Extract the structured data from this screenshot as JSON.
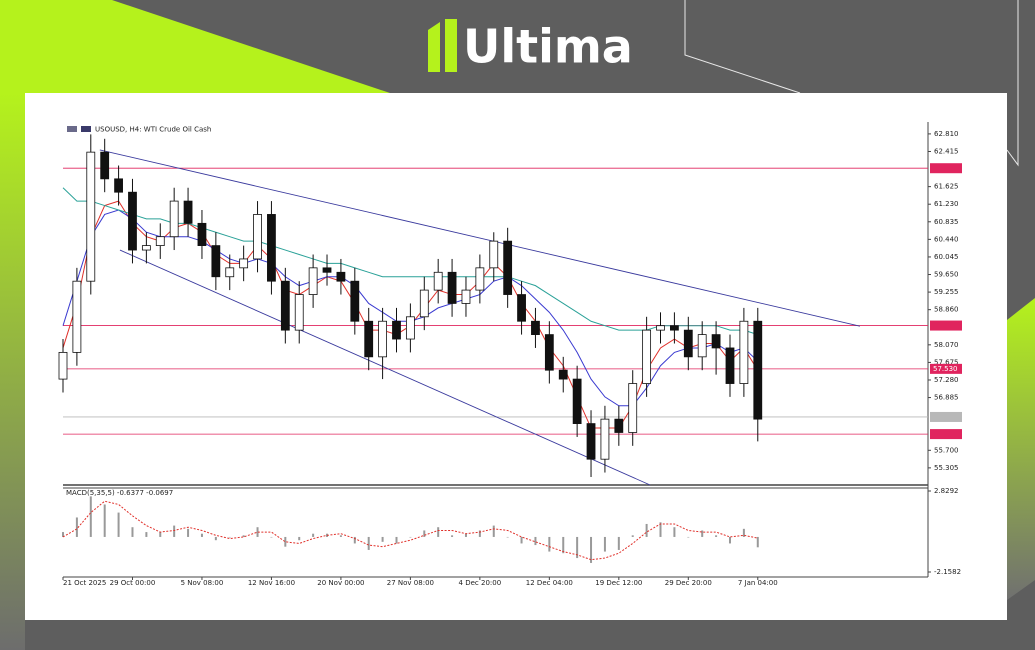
{
  "brand": "Ultima",
  "chart_data": {
    "type": "candlestick",
    "title": "USOUSD, H4:  WTI Crude Oil Cash",
    "xlim": [
      0,
      124.5
    ],
    "ylim": [
      54.92,
      63.01
    ],
    "xticks": [
      {
        "value": 0,
        "label": "21 Oct 2025"
      },
      {
        "value": 10,
        "label": "29 Oct 00:00"
      },
      {
        "value": 20,
        "label": "5 Nov 08:00"
      },
      {
        "value": 30,
        "label": "12 Nov 16:00"
      },
      {
        "value": 40,
        "label": "20 Nov 00:00"
      },
      {
        "value": 50,
        "label": "27 Nov 08:00"
      },
      {
        "value": 60,
        "label": "4 Dec 20:00"
      },
      {
        "value": 70,
        "label": "12 Dec 04:00"
      },
      {
        "value": 80,
        "label": "19 Dec 12:00"
      },
      {
        "value": 90,
        "label": "29 Dec 20:00"
      },
      {
        "value": 100,
        "label": "7 Jan 04:00"
      }
    ],
    "yticks": [
      {
        "value": 62.81,
        "label": "62.810"
      },
      62.415,
      61.625,
      {
        "value": 61.23,
        "label": "61.230"
      },
      60.835,
      {
        "value": 60.44,
        "label": "60.440"
      },
      60.045,
      {
        "value": 59.65,
        "label": "59.650"
      },
      59.255,
      {
        "value": 58.86,
        "label": "58.860"
      },
      {
        "value": 58.07,
        "label": "58.070"
      },
      57.675,
      {
        "value": 57.28,
        "label": "57.280"
      },
      56.885,
      {
        "value": 55.7,
        "label": "55.700"
      },
      55.305
    ],
    "x": [
      0,
      2,
      4,
      6,
      8,
      10,
      12,
      14,
      16,
      18,
      20,
      22,
      24,
      26,
      28,
      30,
      32,
      34,
      36,
      38,
      40,
      42,
      44,
      46,
      48,
      50,
      52,
      54,
      56,
      58,
      60,
      62,
      64,
      66,
      68,
      70,
      72,
      74,
      76,
      78,
      80,
      82,
      84,
      86,
      88,
      90,
      92,
      94,
      96,
      98,
      100
    ],
    "open": [
      57.3,
      57.9,
      59.5,
      62.4,
      61.8,
      61.5,
      60.2,
      60.3,
      60.5,
      61.3,
      60.8,
      60.3,
      59.6,
      59.8,
      60.0,
      61.0,
      59.5,
      58.4,
      59.2,
      59.8,
      59.7,
      59.5,
      58.6,
      57.8,
      58.6,
      58.2,
      58.7,
      59.3,
      59.7,
      59.0,
      59.3,
      59.8,
      60.4,
      59.2,
      58.6,
      58.3,
      57.5,
      57.3,
      56.3,
      55.5,
      56.4,
      56.1,
      57.2,
      58.4,
      58.5,
      58.4,
      57.8,
      58.3,
      58.0,
      57.2,
      58.6
    ],
    "high": [
      58.2,
      59.8,
      62.8,
      62.7,
      62.1,
      61.8,
      60.6,
      60.8,
      61.6,
      61.6,
      61.1,
      60.6,
      60.1,
      60.3,
      61.3,
      61.3,
      59.8,
      59.5,
      60.1,
      60.1,
      60.0,
      59.8,
      58.9,
      58.9,
      58.9,
      59.0,
      59.6,
      60.0,
      60.0,
      59.6,
      60.1,
      60.6,
      60.7,
      59.5,
      58.9,
      58.6,
      57.8,
      57.6,
      56.6,
      56.7,
      56.7,
      57.5,
      58.7,
      58.8,
      58.8,
      58.7,
      58.6,
      58.6,
      58.3,
      58.9,
      58.9
    ],
    "low": [
      57.0,
      57.6,
      59.2,
      61.5,
      61.2,
      59.9,
      59.9,
      60.0,
      60.2,
      60.5,
      60.0,
      59.3,
      59.3,
      59.5,
      59.7,
      59.2,
      58.1,
      58.1,
      58.9,
      59.4,
      59.2,
      58.3,
      57.5,
      57.3,
      57.9,
      57.9,
      58.4,
      59.0,
      58.7,
      58.7,
      59.0,
      59.5,
      58.9,
      58.3,
      58.0,
      57.2,
      57.0,
      56.0,
      55.1,
      55.2,
      55.8,
      55.8,
      56.9,
      58.1,
      58.1,
      57.5,
      57.5,
      57.4,
      56.9,
      56.9,
      55.9
    ],
    "close": [
      57.9,
      59.5,
      62.4,
      61.8,
      61.5,
      60.2,
      60.3,
      60.5,
      61.3,
      60.8,
      60.3,
      59.6,
      59.8,
      60.0,
      61.0,
      59.5,
      58.4,
      59.2,
      59.8,
      59.7,
      59.5,
      58.6,
      57.8,
      58.6,
      58.2,
      58.7,
      59.3,
      59.7,
      59.0,
      59.3,
      59.8,
      60.4,
      59.2,
      58.6,
      58.3,
      57.5,
      57.3,
      56.3,
      55.5,
      56.4,
      56.1,
      57.2,
      58.4,
      58.5,
      58.4,
      57.8,
      58.3,
      58.0,
      57.2,
      58.6,
      56.4
    ],
    "lines": [
      {
        "color": "#e0302a",
        "values": [
          58.0,
          59.0,
          60.5,
          61.2,
          61.3,
          60.8,
          60.5,
          60.4,
          60.7,
          60.8,
          60.6,
          60.1,
          59.9,
          59.9,
          60.3,
          60.0,
          59.3,
          59.2,
          59.4,
          59.6,
          59.5,
          59.0,
          58.4,
          58.4,
          58.3,
          58.5,
          58.9,
          59.3,
          59.2,
          59.2,
          59.5,
          59.9,
          59.6,
          59.0,
          58.6,
          58.0,
          57.6,
          56.9,
          56.2,
          56.2,
          56.2,
          56.7,
          57.5,
          58.0,
          58.2,
          58.0,
          58.1,
          58.1,
          57.7,
          58.0,
          57.5
        ]
      },
      {
        "color": "#3a3ad0",
        "values": [
          58.5,
          59.5,
          60.5,
          61.0,
          61.1,
          60.9,
          60.6,
          60.5,
          60.5,
          60.5,
          60.4,
          60.2,
          60.0,
          59.9,
          60.0,
          59.9,
          59.6,
          59.4,
          59.5,
          59.6,
          59.6,
          59.4,
          59.0,
          58.8,
          58.6,
          58.6,
          58.7,
          58.9,
          59.0,
          59.1,
          59.2,
          59.5,
          59.6,
          59.4,
          59.1,
          58.8,
          58.4,
          57.9,
          57.3,
          56.9,
          56.7,
          56.7,
          57.1,
          57.6,
          57.9,
          58.0,
          58.0,
          58.1,
          57.9,
          58.0,
          57.7
        ]
      },
      {
        "color": "#2aa198",
        "values": [
          61.6,
          61.3,
          61.3,
          61.2,
          61.1,
          61.0,
          60.9,
          60.9,
          60.8,
          60.8,
          60.7,
          60.6,
          60.5,
          60.4,
          60.4,
          60.3,
          60.2,
          60.1,
          60.0,
          59.9,
          59.9,
          59.8,
          59.7,
          59.6,
          59.6,
          59.6,
          59.6,
          59.6,
          59.6,
          59.6,
          59.6,
          59.6,
          59.6,
          59.5,
          59.4,
          59.2,
          59.0,
          58.8,
          58.6,
          58.5,
          58.4,
          58.4,
          58.4,
          58.5,
          58.5,
          58.5,
          58.5,
          58.5,
          58.4,
          58.4,
          58.3
        ]
      }
    ],
    "trendlines": [
      {
        "color": "#3b3b9e",
        "x": [
          5.3,
          114.7
        ],
        "y": [
          62.45,
          58.49
        ]
      },
      {
        "color": "#3b3b9e",
        "x": [
          8.2,
          84.5
        ],
        "y": [
          60.2,
          54.92
        ]
      }
    ],
    "levels": [
      {
        "value": 62.039,
        "color": "#e0245e"
      },
      {
        "value": 58.503,
        "color": "#e0245e"
      },
      {
        "value": 57.53,
        "label": "57.530",
        "color": "#e0245e"
      },
      {
        "value": 56.449,
        "color": "#b8b8b8"
      },
      {
        "value": 56.064,
        "color": "#e0245e"
      }
    ],
    "macd": {
      "title": "MACD(5,35,5) -0.6377 -0.0697",
      "ylim": [
        -2.1582,
        2.8292
      ],
      "yticks": [
        2.8292,
        -2.1582
      ],
      "values": [
        0.3,
        1.2,
        2.5,
        2.0,
        1.5,
        0.6,
        0.3,
        0.3,
        0.7,
        0.5,
        0.2,
        -0.2,
        0.0,
        0.1,
        0.6,
        0.0,
        -0.6,
        -0.2,
        0.2,
        0.2,
        0.1,
        -0.4,
        -0.8,
        -0.3,
        -0.4,
        0.0,
        0.4,
        0.6,
        0.1,
        0.2,
        0.4,
        0.7,
        0.0,
        -0.4,
        -0.5,
        -0.9,
        -1.0,
        -1.3,
        -1.6,
        -0.9,
        -0.8,
        0.1,
        0.8,
        0.9,
        0.6,
        0.0,
        0.4,
        0.1,
        -0.4,
        0.5,
        -0.6377
      ],
      "signal": [
        0.0,
        0.5,
        1.5,
        2.2,
        2.0,
        1.3,
        0.7,
        0.3,
        0.4,
        0.6,
        0.4,
        0.1,
        -0.1,
        0.0,
        0.3,
        0.3,
        -0.3,
        -0.4,
        -0.1,
        0.1,
        0.2,
        -0.1,
        -0.5,
        -0.6,
        -0.4,
        -0.2,
        0.1,
        0.4,
        0.4,
        0.2,
        0.3,
        0.5,
        0.4,
        0.0,
        -0.3,
        -0.6,
        -0.9,
        -1.1,
        -1.4,
        -1.3,
        -1.0,
        -0.4,
        0.3,
        0.8,
        0.8,
        0.4,
        0.3,
        0.3,
        0.0,
        0.1,
        -0.0697
      ],
      "color": "#999999",
      "signal_color": "#e0302a"
    }
  }
}
